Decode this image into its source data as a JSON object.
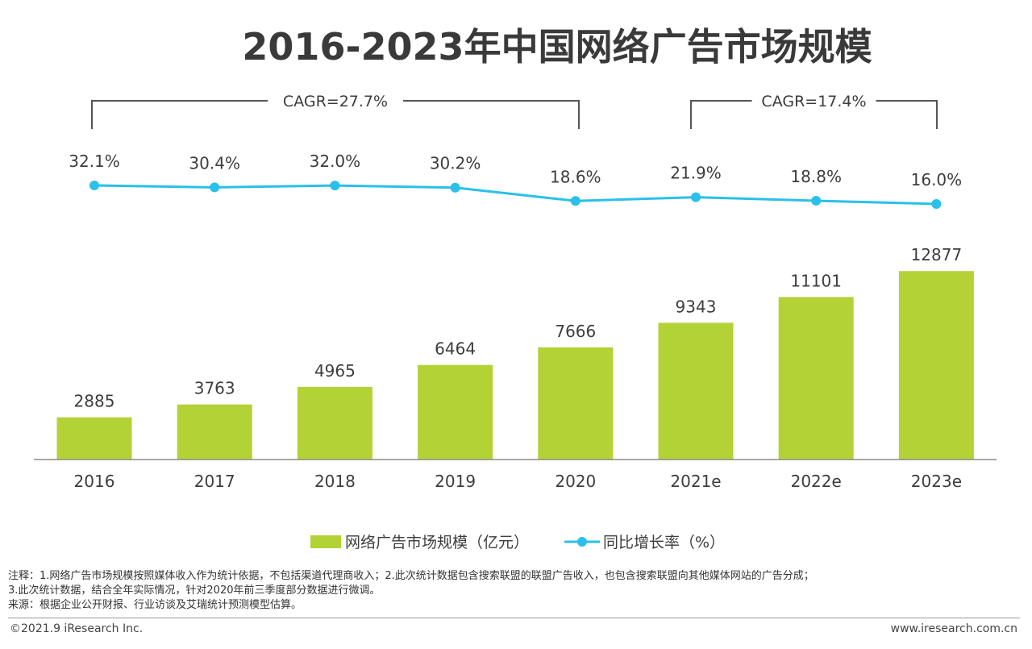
{
  "chart_data": {
    "type": "bar",
    "title": "2016-2023年中国网络广告市场规模",
    "categories": [
      "2016",
      "2017",
      "2018",
      "2019",
      "2020",
      "2021e",
      "2022e",
      "2023e"
    ],
    "series": [
      {
        "name": "网络广告市场规模（亿元）",
        "type": "bar",
        "color": "#b2d235",
        "values": [
          2885,
          3763,
          4965,
          6464,
          7666,
          9343,
          11101,
          12877
        ]
      },
      {
        "name": "同比增长率（%）",
        "type": "line",
        "color": "#29c0ea",
        "values": [
          32.1,
          30.4,
          32.0,
          30.2,
          18.6,
          21.9,
          18.8,
          16.0
        ],
        "labels": [
          "32.1%",
          "30.4%",
          "32.0%",
          "30.2%",
          "18.6%",
          "21.9%",
          "18.8%",
          "16.0%"
        ]
      }
    ],
    "bar_labels": [
      "2885",
      "3763",
      "4965",
      "6464",
      "7666",
      "9343",
      "11101",
      "12877"
    ],
    "ylim": [
      0,
      13000
    ],
    "line_ylim": [
      0,
      50
    ],
    "cagr": [
      {
        "label": "CAGR=27.7%",
        "from": "2016",
        "to": "2020"
      },
      {
        "label": "CAGR=17.4%",
        "from": "2021e",
        "to": "2023e"
      }
    ],
    "legend_position": "bottom-center",
    "grid": false
  },
  "notes": {
    "line1": "注释：1.网络广告市场规模按照媒体收入作为统计依据，不包括渠道代理商收入；2.此次统计数据包含搜索联盟的联盟广告收入，也包含搜索联盟向其他媒体网站的广告分成；",
    "line2": "3.此次统计数据，结合全年实际情况，针对2020年前三季度部分数据进行微调。",
    "line3": "来源：根据企业公开财报、行业访谈及艾瑞统计预测模型估算。"
  },
  "footer": {
    "copyright": "©2021.9 iResearch Inc.",
    "site": "www.iresearch.com.cn"
  }
}
